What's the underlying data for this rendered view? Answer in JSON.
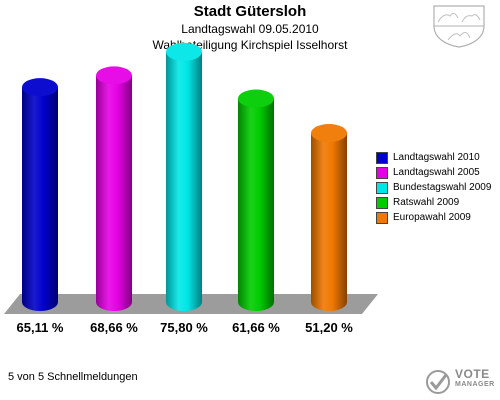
{
  "header": {
    "title": "Stadt Gütersloh",
    "subtitle_1": "Landtagswahl 09.05.2010",
    "subtitle_2": "Wahlbeteiligung Kirchspiel Isselhorst"
  },
  "footer": {
    "text": "5 von 5 Schnellmeldungen"
  },
  "logo": {
    "line1": "VOTE",
    "line2": "MANAGER"
  },
  "chart_data": {
    "type": "bar",
    "title": "Stadt Gütersloh",
    "categories": [
      "Landtagswahl 2010",
      "Landtagswahl 2005",
      "Bundestagswahl 2009",
      "Ratswahl 2009",
      "Europawahl 2009"
    ],
    "values": [
      65.11,
      68.66,
      75.8,
      61.66,
      51.2
    ],
    "value_labels": [
      "65,11 %",
      "68,66 %",
      "75,80 %",
      "61,66 %",
      "51,20 %"
    ],
    "colors": [
      "#0000cc",
      "#e600e6",
      "#00e6e6",
      "#00cc00",
      "#f07800"
    ],
    "ylim": [
      0,
      100
    ],
    "grid": false,
    "legend": "right"
  }
}
